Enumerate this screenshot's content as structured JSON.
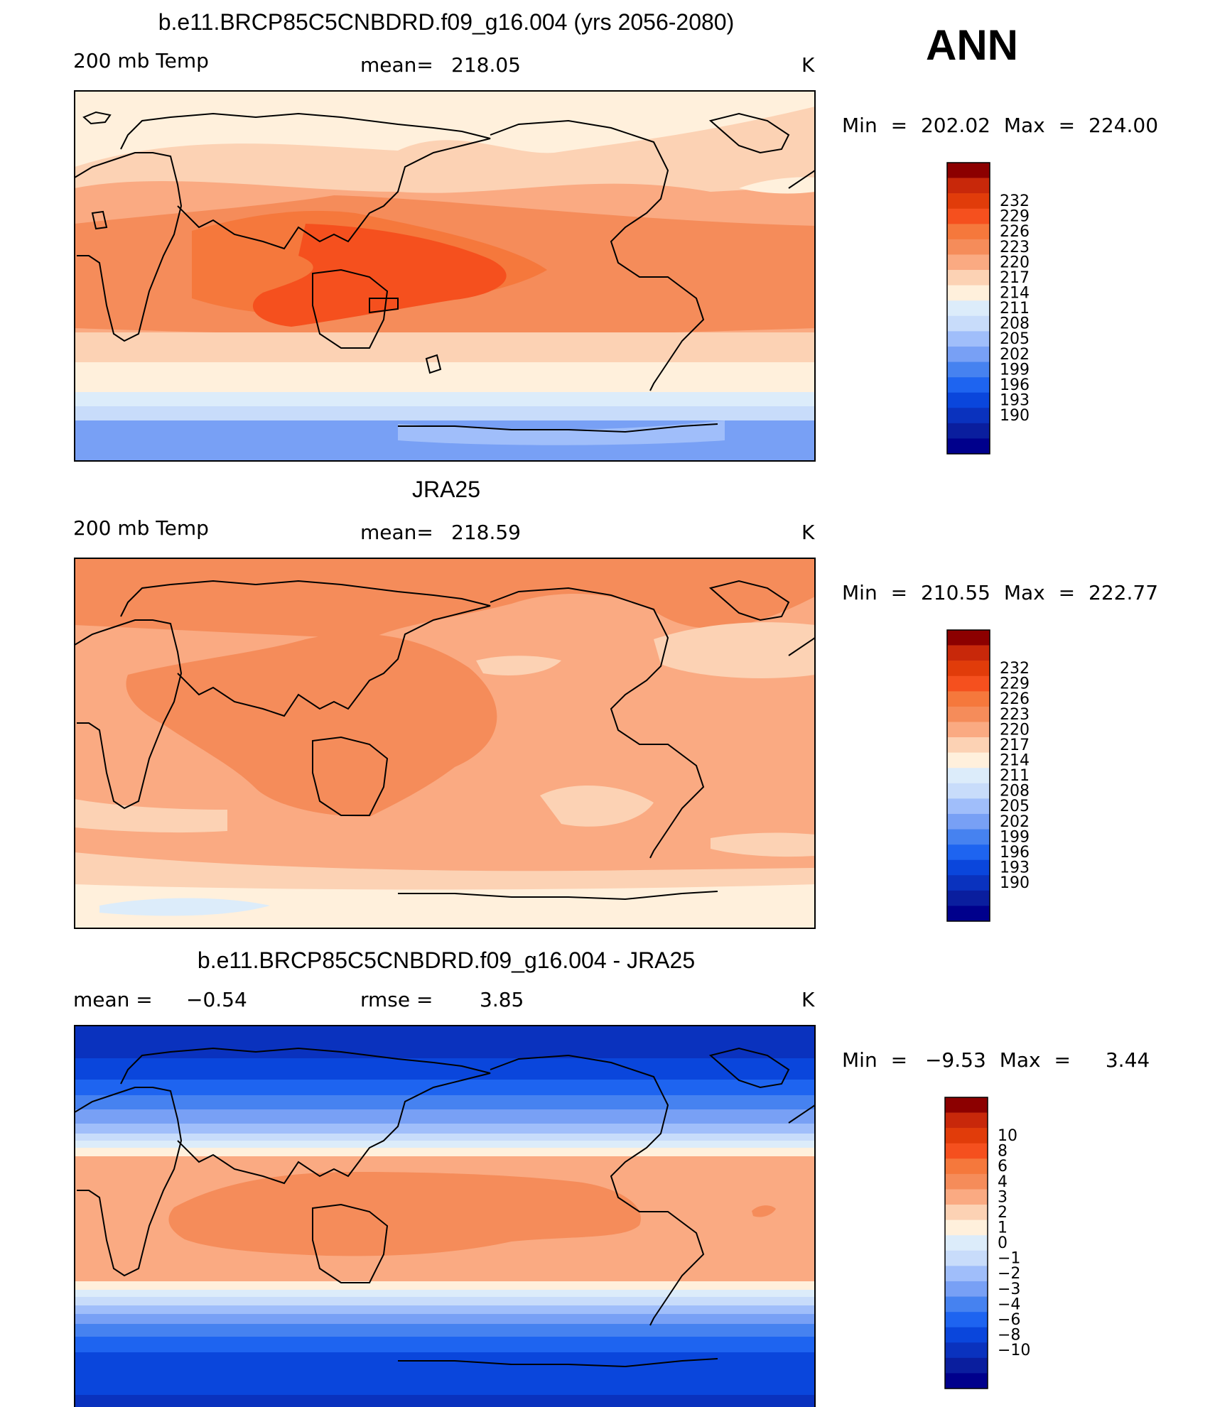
{
  "season": "ANN",
  "colors": {
    "abs": [
      "#00008c",
      "#0a1e9e",
      "#0a32be",
      "#0a46dc",
      "#1e64f0",
      "#4682f0",
      "#78a0f5",
      "#a0befa",
      "#c8dcfa",
      "#dcecfa",
      "#fff0dc",
      "#fcd2b4",
      "#faaa82",
      "#f58c5a",
      "#f5783c",
      "#f5501e",
      "#e13c0a",
      "#c8280a",
      "#8c0000"
    ],
    "diff": [
      "#00008c",
      "#0a1e9e",
      "#0a32be",
      "#0a46dc",
      "#1e64f0",
      "#4682f0",
      "#78a0f5",
      "#a0befa",
      "#c8dcfa",
      "#dcecfa",
      "#fff0dc",
      "#fcd2b4",
      "#faaa82",
      "#f58c5a",
      "#f5783c",
      "#f5501e",
      "#e13c0a",
      "#c8280a",
      "#8c0000"
    ]
  },
  "panels": [
    {
      "title": "b.e11.BRCP85C5CNBDRD.f09_g16.004 (yrs 2056-2080)",
      "left_label": "200 mb Temp",
      "mid_label": "mean=",
      "mid_value": "218.05",
      "units": "K",
      "min_label": "Min",
      "min_value": "202.02",
      "max_label": "Max",
      "max_value": "224.00",
      "legend_levels": [
        "232",
        "229",
        "226",
        "223",
        "220",
        "217",
        "214",
        "211",
        "208",
        "205",
        "202",
        "199",
        "196",
        "193",
        "190"
      ]
    },
    {
      "title": "JRA25",
      "left_label": "200 mb Temp",
      "mid_label": "mean=",
      "mid_value": "218.59",
      "units": "K",
      "min_label": "Min",
      "min_value": "210.55",
      "max_label": "Max",
      "max_value": "222.77",
      "legend_levels": [
        "232",
        "229",
        "226",
        "223",
        "220",
        "217",
        "214",
        "211",
        "208",
        "205",
        "202",
        "199",
        "196",
        "193",
        "190"
      ]
    },
    {
      "title": "b.e11.BRCP85C5CNBDRD.f09_g16.004 - JRA25",
      "left_label": "mean =",
      "left_value": "−0.54",
      "mid_label": "rmse =",
      "mid_value": "3.85",
      "units": "K",
      "min_label": "Min",
      "min_value": "−9.53",
      "max_label": "Max",
      "max_value": "3.44",
      "legend_levels": [
        "10",
        "8",
        "6",
        "4",
        "3",
        "2",
        "1",
        "0",
        "−1",
        "−2",
        "−3",
        "−4",
        "−6",
        "−8",
        "−10"
      ]
    }
  ]
}
